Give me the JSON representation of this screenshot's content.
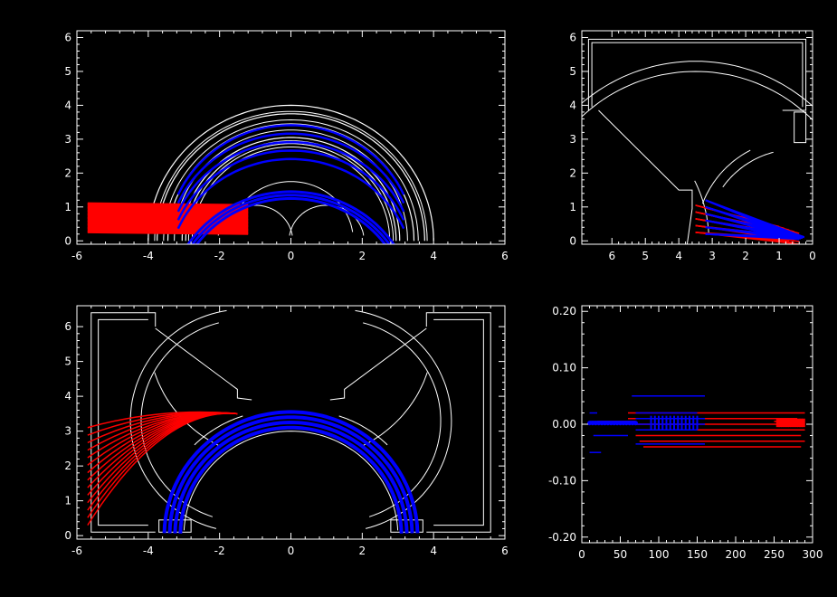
{
  "colors": {
    "background": "#000000",
    "axes": "#ffffff",
    "structure": "#ffffff",
    "series_red": "#ff0000",
    "series_blue": "#0000ff"
  },
  "chart_data": [
    {
      "id": "panel-top-left",
      "type": "line",
      "title": "",
      "xlabel": "",
      "ylabel": "",
      "xlim": [
        -6,
        6
      ],
      "ylim": [
        -0.1,
        6.2
      ],
      "xticks": [
        "-6",
        "-4",
        "-2",
        "0",
        "2",
        "4",
        "6"
      ],
      "yticks": [
        "0",
        "1",
        "2",
        "3",
        "4",
        "5",
        "6"
      ],
      "grid": false,
      "structure": {
        "arcs_radii": [
          4.0,
          3.75,
          3.45,
          3.05,
          2.95
        ],
        "arc_center": [
          0,
          0
        ],
        "lens_arcs": [
          {
            "cx": 0,
            "r": 1.75
          },
          {
            "cx": -1.0,
            "r": 1.05
          },
          {
            "cx": 1.0,
            "r": 1.05
          }
        ]
      },
      "series": [
        {
          "color": "#ff0000",
          "kind": "horizontal_beams",
          "x_start": -5.7,
          "x_end": -1.2,
          "y_values": [
            1.05,
            0.95,
            0.85,
            0.75,
            0.65,
            0.55,
            0.45,
            0.35,
            0.25
          ]
        },
        {
          "color": "#0000ff",
          "kind": "arcs",
          "center": [
            0,
            0
          ],
          "radii": [
            3.45,
            3.35,
            3.25
          ],
          "y_levels": [
            1.25,
            1.0,
            0.75,
            0.5,
            0.25
          ]
        }
      ]
    },
    {
      "id": "panel-top-right",
      "type": "line",
      "title": "",
      "xlabel": "",
      "ylabel": "",
      "xlim": [
        6.9,
        0
      ],
      "ylim": [
        -0.1,
        6.2
      ],
      "xticks": [
        "6",
        "5",
        "4",
        "3",
        "2",
        "1",
        "0"
      ],
      "yticks": [
        "0",
        "1",
        "2",
        "3",
        "4",
        "5",
        "6"
      ],
      "grid": false,
      "series": [
        {
          "color": "#ff0000",
          "kind": "diverging_beams",
          "origin_x": 3.5,
          "y_values": [
            1.05,
            0.85,
            0.65,
            0.45,
            0.25
          ]
        },
        {
          "color": "#0000ff",
          "kind": "diverging_beams",
          "origin_x": 3.2,
          "y_values": [
            1.2,
            1.0,
            0.8,
            0.6,
            0.4,
            0.2
          ]
        }
      ]
    },
    {
      "id": "panel-bottom-left",
      "type": "line",
      "title": "",
      "xlabel": "",
      "ylabel": "",
      "xlim": [
        -6,
        6
      ],
      "ylim": [
        -0.1,
        6.6
      ],
      "xticks": [
        "-6",
        "-4",
        "-2",
        "0",
        "2",
        "4",
        "6"
      ],
      "yticks": [
        "0",
        "1",
        "2",
        "3",
        "4",
        "5",
        "6"
      ],
      "grid": false,
      "series": [
        {
          "color": "#ff0000",
          "kind": "fan",
          "apex": [
            -1.5,
            3.5
          ],
          "end_x": -5.7,
          "end_y_range": [
            0.3,
            3.1
          ],
          "count": 14
        },
        {
          "color": "#0000ff",
          "kind": "arcs",
          "center": [
            0,
            0
          ],
          "radii": [
            3.55,
            3.4,
            3.25,
            3.1
          ]
        }
      ]
    },
    {
      "id": "panel-bottom-right",
      "type": "line",
      "title": "",
      "xlabel": "",
      "ylabel": "",
      "xlim": [
        0,
        300
      ],
      "ylim": [
        -0.21,
        0.21
      ],
      "xticks": [
        "0",
        "50",
        "100",
        "150",
        "200",
        "250",
        "300"
      ],
      "yticks": [
        "-0.20",
        "-0.10",
        "0.00",
        "0.10",
        "0.20"
      ],
      "grid": false,
      "series": [
        {
          "color": "#ff0000",
          "kind": "steps",
          "segments": [
            [
              20,
              70,
              0.005
            ],
            [
              60,
              290,
              0.02
            ],
            [
              60,
              280,
              0.01
            ],
            [
              70,
              290,
              0.0
            ],
            [
              70,
              290,
              -0.01
            ],
            [
              70,
              285,
              -0.02
            ],
            [
              75,
              290,
              -0.03
            ],
            [
              80,
              285,
              -0.04
            ],
            [
              250,
              290,
              0.005
            ]
          ]
        },
        {
          "color": "#0000ff",
          "kind": "steps",
          "segments": [
            [
              10,
              70,
              0.005
            ],
            [
              15,
              60,
              -0.02
            ],
            [
              65,
              160,
              0.05
            ],
            [
              70,
              150,
              0.02
            ],
            [
              70,
              160,
              0.01
            ],
            [
              70,
              160,
              0.0
            ],
            [
              70,
              150,
              -0.01
            ],
            [
              70,
              160,
              -0.035
            ],
            [
              10,
              25,
              -0.05
            ],
            [
              10,
              20,
              0.02
            ]
          ]
        }
      ]
    }
  ]
}
